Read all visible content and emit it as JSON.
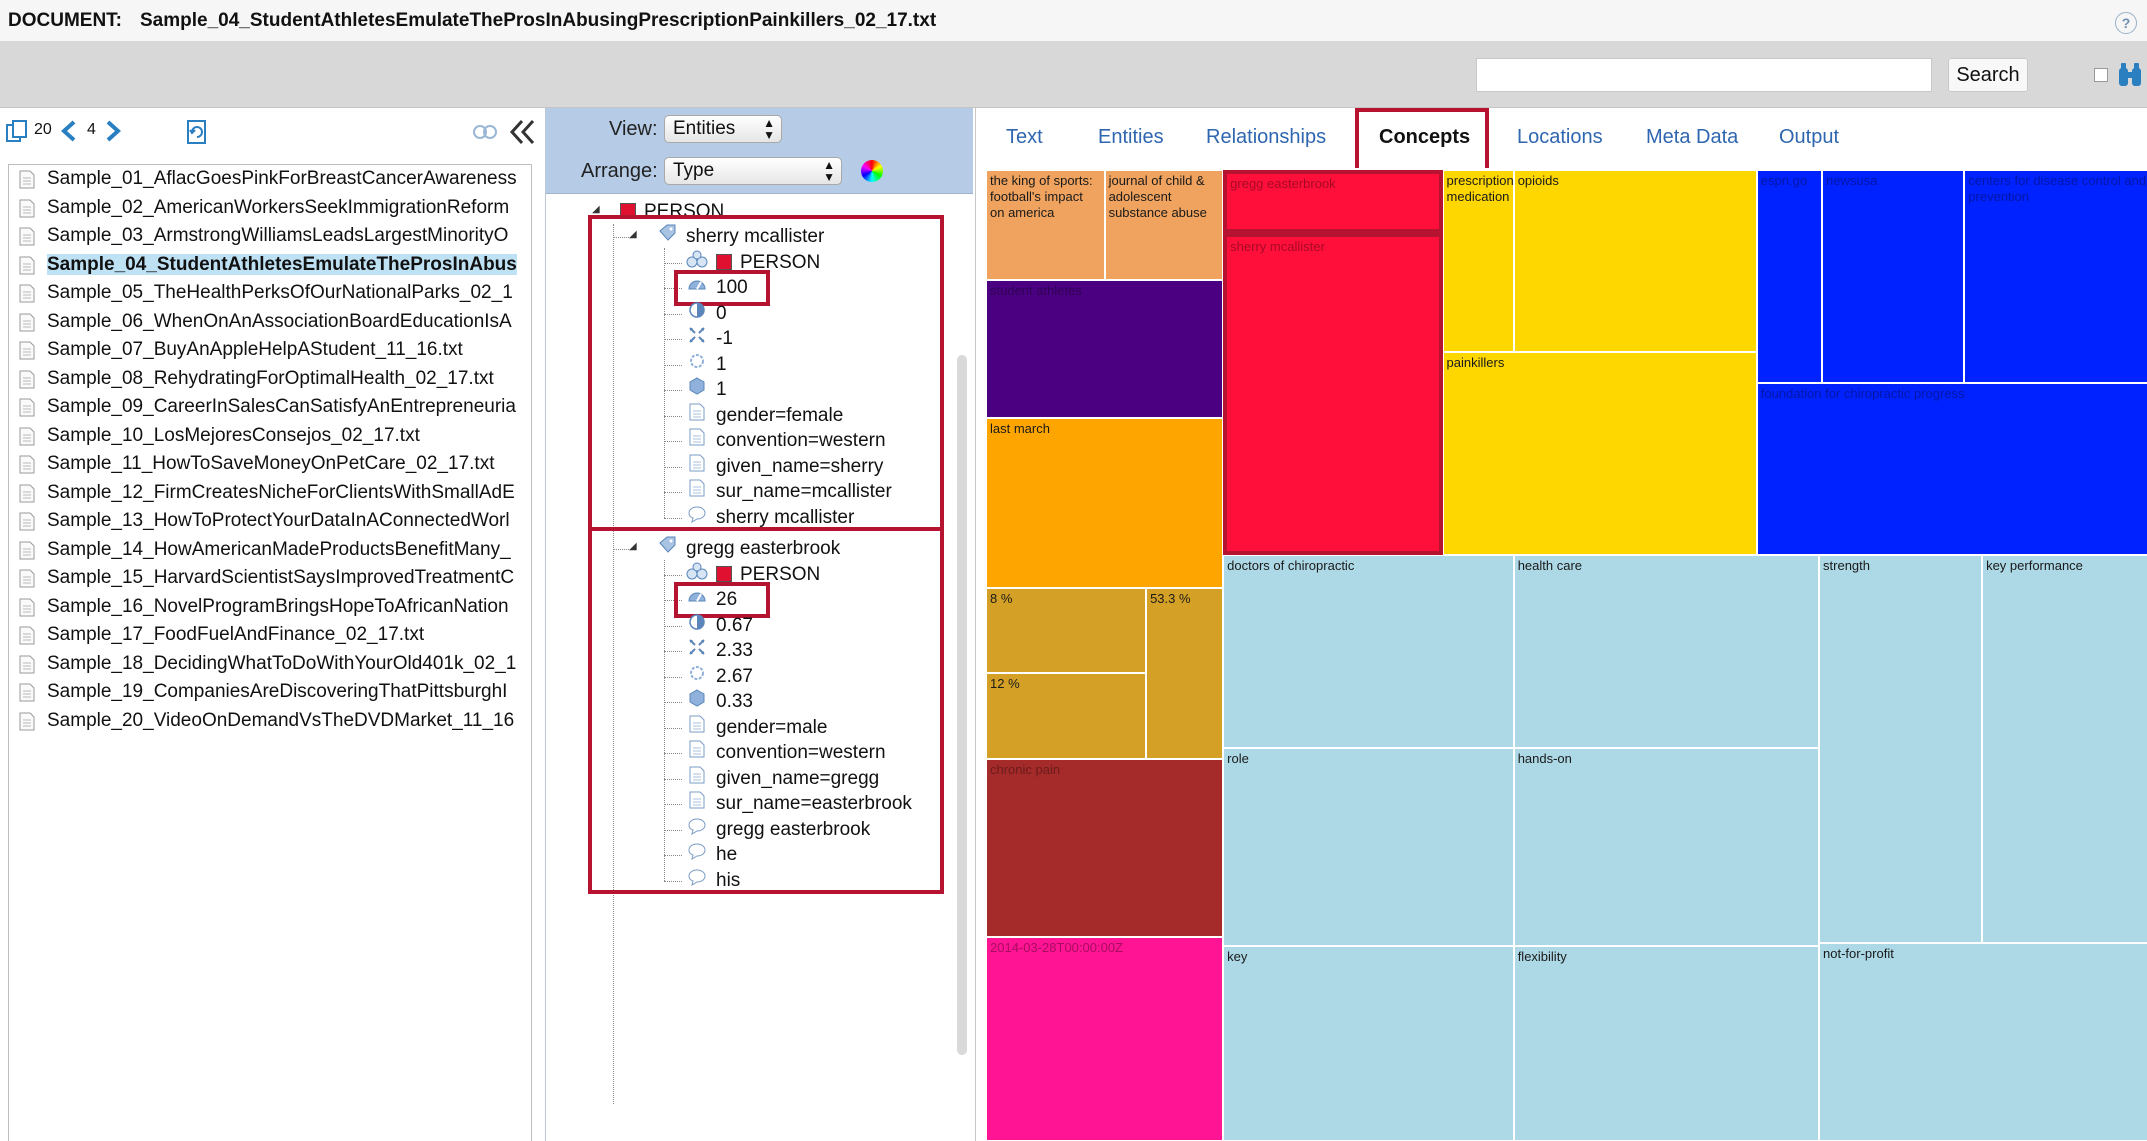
{
  "document_bar": {
    "label": "DOCUMENT:",
    "filename": "Sample_04_StudentAthletesEmulateTheProsInAbusingPrescriptionPainkillers_02_17.txt",
    "help_icon": "question-circle-icon"
  },
  "search": {
    "value": "",
    "button_label": "Search"
  },
  "left_toolbar": {
    "count": "20",
    "page": "4"
  },
  "files": [
    "Sample_01_AflacGoesPinkForBreastCancerAwareness",
    "Sample_02_AmericanWorkersSeekImmigrationReform",
    "Sample_03_ArmstrongWilliamsLeadsLargestMinorityO",
    "Sample_04_StudentAthletesEmulateTheProsInAbus",
    "Sample_05_TheHealthPerksOfOurNationalParks_02_1",
    "Sample_06_WhenOnAnAssociationBoardEducationIsA",
    "Sample_07_BuyAnAppleHelpAStudent_11_16.txt",
    "Sample_08_RehydratingForOptimalHealth_02_17.txt",
    "Sample_09_CareerInSalesCanSatisfyAnEntrepreneuria",
    "Sample_10_LosMejoresConsejos_02_17.txt",
    "Sample_11_HowToSaveMoneyOnPetCare_02_17.txt",
    "Sample_12_FirmCreatesNicheForClientsWithSmallAdE",
    "Sample_13_HowToProtectYourDataInAConnectedWorl",
    "Sample_14_HowAmericanMadeProductsBenefitMany_",
    "Sample_15_HarvardScientistSaysImprovedTreatmentC",
    "Sample_16_NovelProgramBringsHopeToAfricanNation",
    "Sample_17_FoodFuelAndFinance_02_17.txt",
    "Sample_18_DecidingWhatToDoWithYourOld401k_02_1",
    "Sample_19_CompaniesAreDiscoveringThatPittsburghI",
    "Sample_20_VideoOnDemandVsTheDVDMarket_11_16"
  ],
  "controls": {
    "view_label": "View:",
    "view_value": "Entities",
    "arrange_label": "Arrange:",
    "arrange_value": "Type"
  },
  "tree": {
    "root": "PERSON",
    "entities": [
      {
        "name": "sherry mcallister",
        "type": "PERSON",
        "score": "100",
        "v1": "0",
        "v2": "-1",
        "v3": "1",
        "v4": "1",
        "attrs": [
          "gender=female",
          "convention=western",
          "given_name=sherry",
          "sur_name=mcallister"
        ],
        "mentions": [
          "sherry mcallister"
        ]
      },
      {
        "name": "gregg easterbrook",
        "type": "PERSON",
        "score": "26",
        "v1": "0.67",
        "v2": "2.33",
        "v3": "2.67",
        "v4": "0.33",
        "attrs": [
          "gender=male",
          "convention=western",
          "given_name=gregg",
          "sur_name=easterbrook"
        ],
        "mentions": [
          "gregg easterbrook",
          "he",
          "his"
        ]
      }
    ]
  },
  "tabs": [
    "Text",
    "Entities",
    "Relationships",
    "Concepts",
    "Locations",
    "Meta Data",
    "Output"
  ],
  "active_tab": "Concepts",
  "treemap": [
    {
      "label": "the king of sports: football's impact on america",
      "color": "#f0a35e"
    },
    {
      "label": "journal of child & adolescent substance abuse",
      "color": "#f0a35e"
    },
    {
      "label": "student athletes",
      "color": "#4b0082"
    },
    {
      "label": "last march",
      "color": "#ffa500"
    },
    {
      "label": "8 %",
      "color": "#d4a126"
    },
    {
      "label": "53.3 %",
      "color": "#d4a126"
    },
    {
      "label": "12 %",
      "color": "#d4a126"
    },
    {
      "label": "chronic pain",
      "color": "#a52a2a"
    },
    {
      "label": "2014-03-28T00:00:00Z",
      "color": "#ff1493"
    },
    {
      "label": "gregg easterbrook",
      "color": "#ff0f3a"
    },
    {
      "label": "sherry mcallister",
      "color": "#ff0f3a"
    },
    {
      "label": "prescription medication",
      "color": "#ffd700"
    },
    {
      "label": "opioids",
      "color": "#ffd700"
    },
    {
      "label": "painkillers",
      "color": "#ffd700"
    },
    {
      "label": "espn.go",
      "color": "#0022ff"
    },
    {
      "label": "newsusa",
      "color": "#0022ff"
    },
    {
      "label": "centers for disease control and prevention",
      "color": "#0022ff"
    },
    {
      "label": "foundation for chiropractic progress",
      "color": "#0022ff"
    },
    {
      "label": "doctors of chiropractic",
      "color": "#add8e6"
    },
    {
      "label": "health care",
      "color": "#add8e6"
    },
    {
      "label": "strength",
      "color": "#add8e6"
    },
    {
      "label": "key performance",
      "color": "#add8e6"
    },
    {
      "label": "role",
      "color": "#add8e6"
    },
    {
      "label": "hands-on",
      "color": "#add8e6"
    },
    {
      "label": "key",
      "color": "#add8e6"
    },
    {
      "label": "flexibility",
      "color": "#add8e6"
    },
    {
      "label": "not-for-profit",
      "color": "#add8e6"
    }
  ]
}
